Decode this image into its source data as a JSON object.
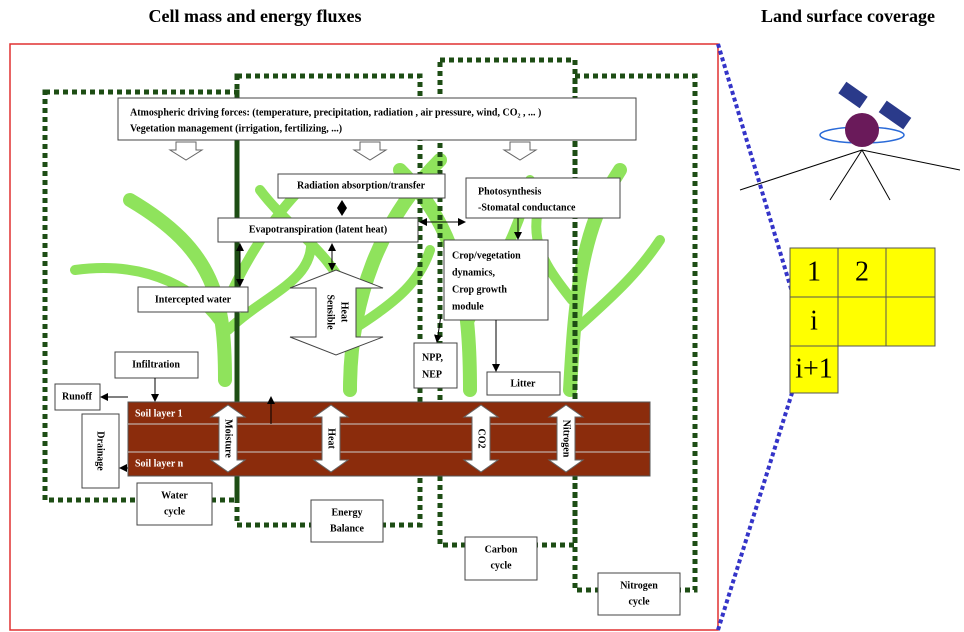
{
  "titles": {
    "left": "Cell mass and energy fluxes",
    "right": "Land surface coverage"
  },
  "drivers": [
    "Atmospheric driving forces: (temperature, precipitation, radiation , air pressure, wind, CO₂ , ... )",
    "Vegetation management (irrigation, fertilizing, ...)"
  ],
  "processes": {
    "radiation": "Radiation absorption/transfer",
    "photosynthesis": [
      "Photosynthesis",
      "-Stomatal conductance"
    ],
    "evapotranspiration": "Evapotranspiration (latent heat)",
    "crop": [
      "Crop/vegetation",
      "dynamics,",
      "Crop growth",
      "module"
    ],
    "intercepted": "Intercepted water",
    "sensible_heat": [
      "Sensible",
      "Heat"
    ],
    "npp": [
      "NPP,",
      "NEP"
    ],
    "infiltration": "Infiltration",
    "litter": "Litter",
    "runoff": "Runoff",
    "drainage": "Drainage"
  },
  "soil": [
    "Soil layer 1",
    "Soil layer n"
  ],
  "fluxes": [
    "Moisture",
    "Heat",
    "CO2",
    "Nitrogen"
  ],
  "cycles": [
    [
      "Water",
      "cycle"
    ],
    [
      "Energy",
      "Balance"
    ],
    [
      "Carbon",
      "cycle"
    ],
    [
      "Nitrogen",
      "cycle"
    ]
  ],
  "grid": [
    "1",
    "2",
    "i",
    "i+1"
  ]
}
